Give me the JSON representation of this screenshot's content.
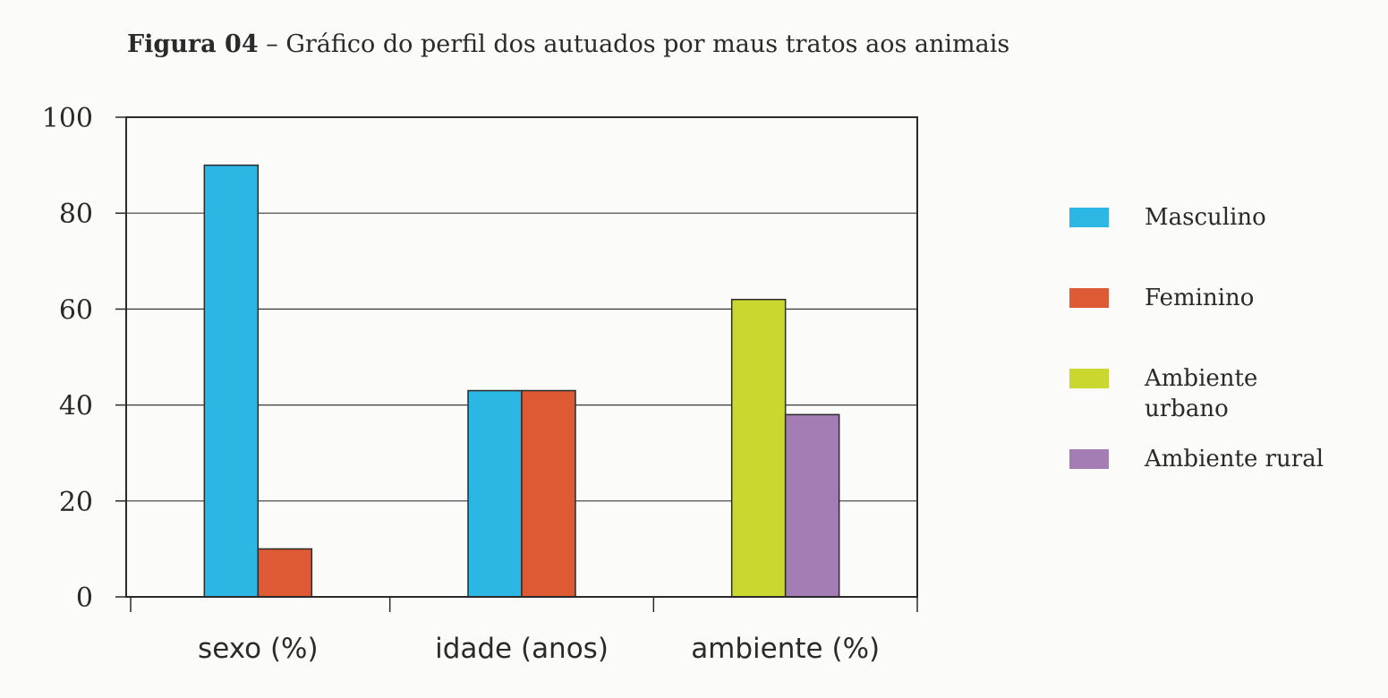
{
  "title": {
    "label": "Figura 04",
    "separator": " – ",
    "text": "Gráfico do perfil dos autuados por maus tratos aos animais"
  },
  "chart_data": {
    "type": "bar",
    "categories": [
      "sexo (%)",
      "idade (anos)",
      "ambiente (%)"
    ],
    "ylim": [
      0,
      100
    ],
    "yticks": [
      0,
      20,
      40,
      60,
      80,
      100
    ],
    "grid": true,
    "legend_position": "right",
    "series": [
      {
        "name": "Masculino",
        "color": "#2bb6e3",
        "values": [
          90,
          43,
          null
        ]
      },
      {
        "name": "Feminino",
        "color": "#de5a35",
        "values": [
          10,
          43,
          null
        ]
      },
      {
        "name": "Ambiente urbano",
        "color": "#c9d72f",
        "values": [
          null,
          null,
          62
        ]
      },
      {
        "name": "Ambiente rural",
        "color": "#a37db3",
        "values": [
          null,
          null,
          38
        ]
      }
    ]
  }
}
